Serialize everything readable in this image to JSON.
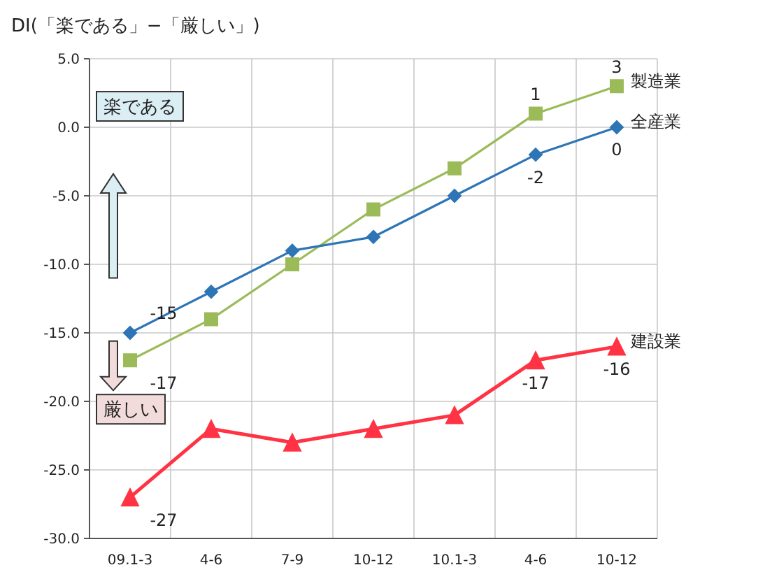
{
  "chart_data": {
    "type": "line",
    "title": "DI(「楽である」−「厳しい」)",
    "categories": [
      "09.1-3",
      "4-6",
      "7-9",
      "10-12",
      "10.1-3",
      "4-6",
      "10-12"
    ],
    "series": [
      {
        "name": "製造業",
        "color": "#9bbb59",
        "marker": "square",
        "values": [
          -17,
          -14,
          -10,
          -6,
          -3,
          1,
          3
        ],
        "value_labels": [
          "-17",
          null,
          null,
          null,
          null,
          "1",
          "3"
        ]
      },
      {
        "name": "全産業",
        "color": "#2e75b6",
        "marker": "diamond",
        "values": [
          -15,
          -12,
          -9,
          -8,
          -5,
          -2,
          0
        ],
        "value_labels": [
          "-15",
          null,
          null,
          null,
          null,
          "-2",
          "0"
        ]
      },
      {
        "name": "建設業",
        "color": "#ff3344",
        "marker": "triangle",
        "values": [
          -27,
          -22,
          -23,
          -22,
          -21,
          -17,
          -16
        ],
        "value_labels": [
          "-27",
          null,
          null,
          null,
          null,
          "-17",
          "-16"
        ]
      }
    ],
    "ylim": [
      -30,
      5
    ],
    "yticks": [
      {
        "value": 5,
        "label": "5.0"
      },
      {
        "value": 0,
        "label": "0.0"
      },
      {
        "value": -5,
        "label": "-5.0"
      },
      {
        "value": -10,
        "label": "-10.0"
      },
      {
        "value": -15,
        "label": "-15.0"
      },
      {
        "value": -20,
        "label": "-20.0"
      },
      {
        "value": -25,
        "label": "-25.0"
      },
      {
        "value": -30,
        "label": "-30.0"
      }
    ],
    "grid": true,
    "line_style": "solid",
    "annotations": [
      "楽である",
      "厳しい"
    ]
  }
}
